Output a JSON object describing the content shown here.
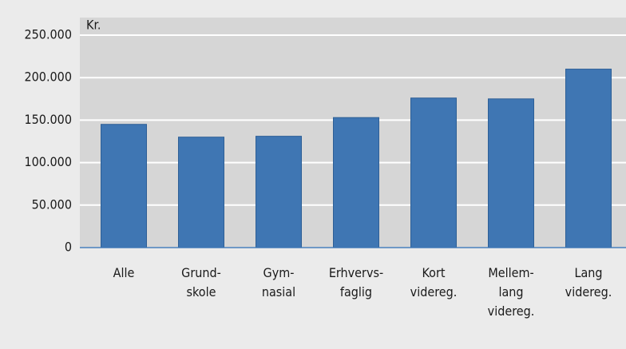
{
  "chart_data": {
    "type": "bar",
    "y_label": "Kr.",
    "categories": [
      "Alle",
      "Grund-\nskole",
      "Gym-\nnasial",
      "Erhvervs-\nfaglig",
      "Kort\nvidereg.",
      "Mellem-\nlang\nvidereg.",
      "Lang\nvidereg."
    ],
    "values": [
      145000,
      130000,
      131000,
      153000,
      176000,
      175000,
      210000
    ],
    "color": "#3f76b3",
    "ylim": [
      0,
      250000
    ],
    "yticks": [
      0,
      {
        "value": 50000,
        "label": "50.000"
      },
      {
        "value": 100000,
        "label": "100.000"
      },
      {
        "value": 150000,
        "label": "150.000"
      },
      {
        "value": 200000,
        "label": "200.000"
      },
      {
        "value": 250000,
        "label": "250.000"
      }
    ],
    "grid": true
  }
}
